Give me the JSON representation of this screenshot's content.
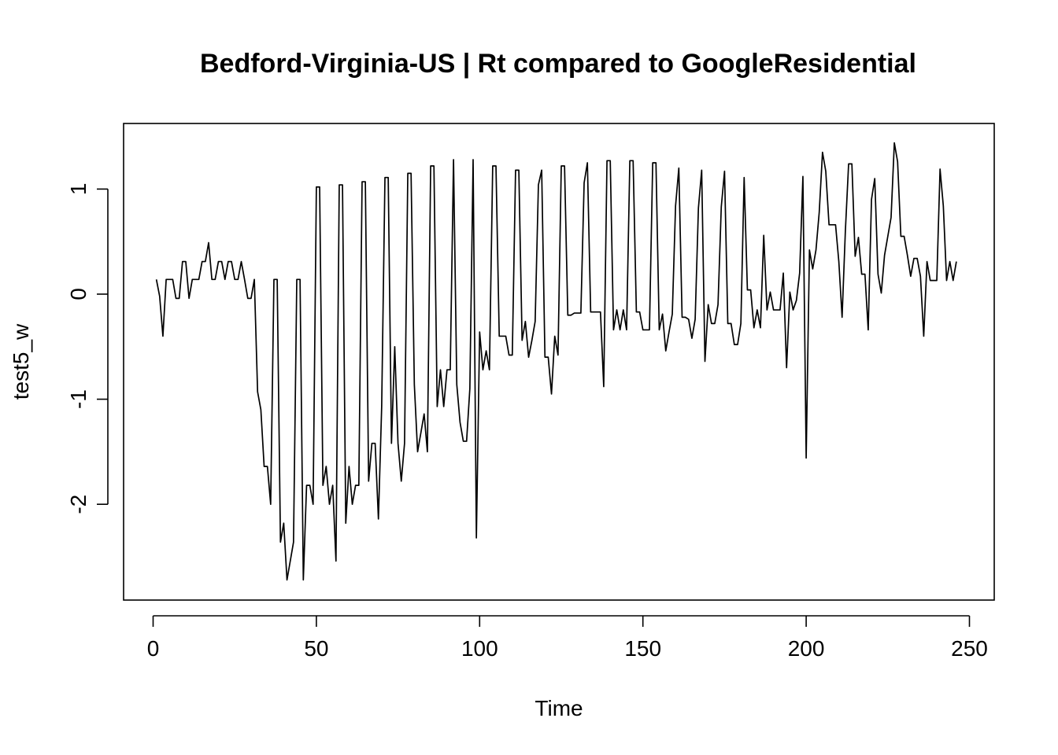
{
  "chart_data": {
    "type": "line",
    "title": "Bedford-Virginia-US | Rt compared to GoogleResidential",
    "xlabel": "Time",
    "ylabel": "test5_w",
    "xlim": [
      0,
      250
    ],
    "ylim": [
      -2.85,
      1.55
    ],
    "x_ticks": [
      0,
      50,
      100,
      150,
      200,
      250
    ],
    "y_ticks": [
      -2,
      -1,
      0,
      1
    ],
    "grid": false,
    "legend": "none",
    "series": [
      {
        "x_start": 1,
        "values": [
          0.14,
          -0.02,
          -0.4,
          0.14,
          0.14,
          0.14,
          -0.04,
          -0.04,
          0.31,
          0.31,
          -0.04,
          0.14,
          0.14,
          0.14,
          0.31,
          0.31,
          0.49,
          0.14,
          0.14,
          0.31,
          0.31,
          0.14,
          0.31,
          0.31,
          0.14,
          0.14,
          0.31,
          0.14,
          -0.04,
          -0.04,
          0.14,
          -0.93,
          -1.1,
          -1.64,
          -1.64,
          -2.0,
          0.14,
          0.14,
          -2.36,
          -2.18,
          -2.72,
          -2.54,
          -2.36,
          0.14,
          0.14,
          -2.72,
          -1.82,
          -1.82,
          -2.0,
          1.02,
          1.02,
          -1.82,
          -1.64,
          -2.0,
          -1.82,
          -2.54,
          1.04,
          1.04,
          -2.18,
          -1.64,
          -2.0,
          -1.82,
          -1.82,
          1.07,
          1.07,
          -1.78,
          -1.42,
          -1.42,
          -2.14,
          -1.07,
          1.11,
          1.11,
          -1.42,
          -0.5,
          -1.42,
          -1.78,
          -1.42,
          1.15,
          1.15,
          -0.86,
          -1.5,
          -1.32,
          -1.14,
          -1.5,
          1.22,
          1.22,
          -1.07,
          -0.72,
          -1.07,
          -0.72,
          -0.72,
          1.28,
          -0.86,
          -1.22,
          -1.4,
          -1.4,
          -0.9,
          1.28,
          -2.32,
          -0.36,
          -0.72,
          -0.54,
          -0.72,
          1.22,
          1.22,
          -0.4,
          -0.4,
          -0.4,
          -0.58,
          -0.58,
          1.18,
          1.18,
          -0.44,
          -0.26,
          -0.6,
          -0.44,
          -0.26,
          1.04,
          1.18,
          -0.6,
          -0.6,
          -0.95,
          -0.4,
          -0.58,
          1.22,
          1.22,
          -0.2,
          -0.2,
          -0.18,
          -0.18,
          -0.18,
          1.06,
          1.25,
          -0.17,
          -0.17,
          -0.17,
          -0.17,
          -0.88,
          1.27,
          1.27,
          -0.34,
          -0.15,
          -0.34,
          -0.15,
          -0.34,
          1.27,
          1.27,
          -0.17,
          -0.17,
          -0.34,
          -0.34,
          -0.34,
          1.25,
          1.25,
          -0.34,
          -0.19,
          -0.54,
          -0.36,
          -0.19,
          0.84,
          1.2,
          -0.22,
          -0.22,
          -0.24,
          -0.42,
          -0.24,
          0.82,
          1.18,
          -0.64,
          -0.1,
          -0.28,
          -0.28,
          -0.1,
          0.83,
          1.17,
          -0.28,
          -0.28,
          -0.48,
          -0.48,
          -0.28,
          1.11,
          0.04,
          0.04,
          -0.32,
          -0.15,
          -0.32,
          0.56,
          -0.15,
          0.02,
          -0.15,
          -0.15,
          -0.15,
          0.2,
          -0.7,
          0.02,
          -0.15,
          -0.06,
          0.2,
          1.12,
          -1.56,
          0.42,
          0.24,
          0.42,
          0.78,
          1.35,
          1.17,
          0.66,
          0.66,
          0.66,
          0.31,
          -0.22,
          0.6,
          1.24,
          1.24,
          0.36,
          0.54,
          0.19,
          0.19,
          -0.34,
          0.9,
          1.1,
          0.19,
          0.01,
          0.37,
          0.55,
          0.73,
          1.44,
          1.26,
          0.55,
          0.55,
          0.37,
          0.17,
          0.34,
          0.34,
          0.17,
          -0.4,
          0.31,
          0.13,
          0.13,
          0.13,
          1.19,
          0.84,
          0.13,
          0.31,
          0.13,
          0.31
        ]
      }
    ]
  }
}
